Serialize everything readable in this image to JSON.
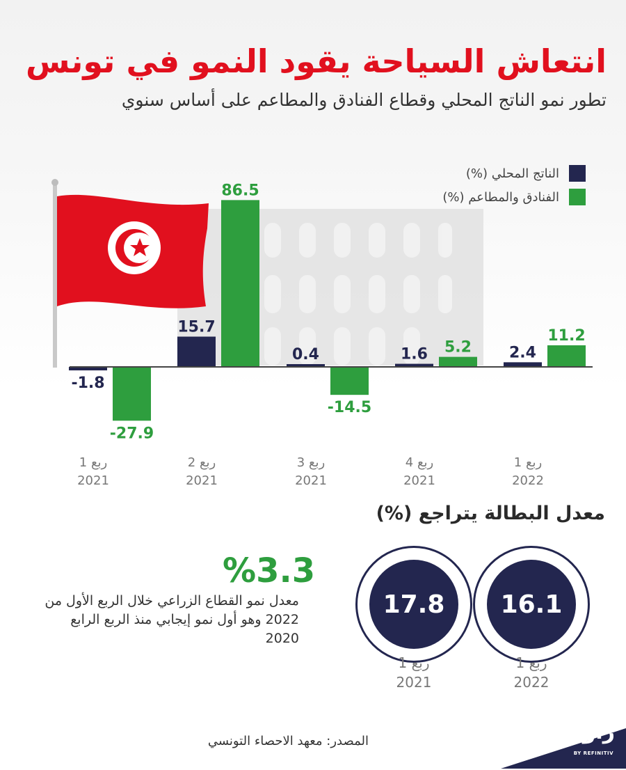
{
  "title": "انتعاش السياحة يقود النمو في تونس",
  "subtitle": "تطور نمو الناتج المحلي وقطاع الفنادق والمطاعم  على أساس سنوي",
  "colors": {
    "title_red": "#e1101e",
    "navy": "#23264f",
    "green": "#2e9e3e",
    "tick_gray": "#777777"
  },
  "chart_data": {
    "type": "bar",
    "categories": [
      [
        "ربع 1",
        "2021"
      ],
      [
        "ربع 2",
        "2021"
      ],
      [
        "ربع 3",
        "2021"
      ],
      [
        "ربع 4",
        "2021"
      ],
      [
        "ربع 1",
        "2022"
      ]
    ],
    "series": [
      {
        "name": "الناتج المحلي (%)",
        "color": "#23264f",
        "values": [
          -1.8,
          15.7,
          0.4,
          1.6,
          2.4
        ],
        "labels": [
          "-1.8",
          "15.7",
          "0.4",
          "1.6",
          "2.4"
        ]
      },
      {
        "name": "الفنادق والمطاعم (%)",
        "color": "#2e9e3e",
        "values": [
          -27.9,
          86.5,
          -14.5,
          5.2,
          11.2
        ],
        "labels": [
          "-27.9",
          "86.5",
          "-14.5",
          "5.2",
          "11.2"
        ]
      }
    ],
    "legend_position": "top-right",
    "grid": false
  },
  "unemployment": {
    "title": "معدل البطالة يتراجع (%)",
    "items": [
      {
        "value": "16.1",
        "label_line1": "ربع 1",
        "label_line2": "2022"
      },
      {
        "value": "17.8",
        "label_line1": "ربع 1",
        "label_line2": "2021"
      }
    ]
  },
  "agriculture": {
    "value": "%3.3",
    "text": "معدل نمو القطاع الزراعي خلال الربع الأول من 2022 وهو أول نمو إيجابي منذ الربع الرابع 2020"
  },
  "source": "المصدر: معهد الاحصاء التونسي",
  "logo": {
    "text": "زاوية",
    "sub": "BY REFINITIV"
  }
}
